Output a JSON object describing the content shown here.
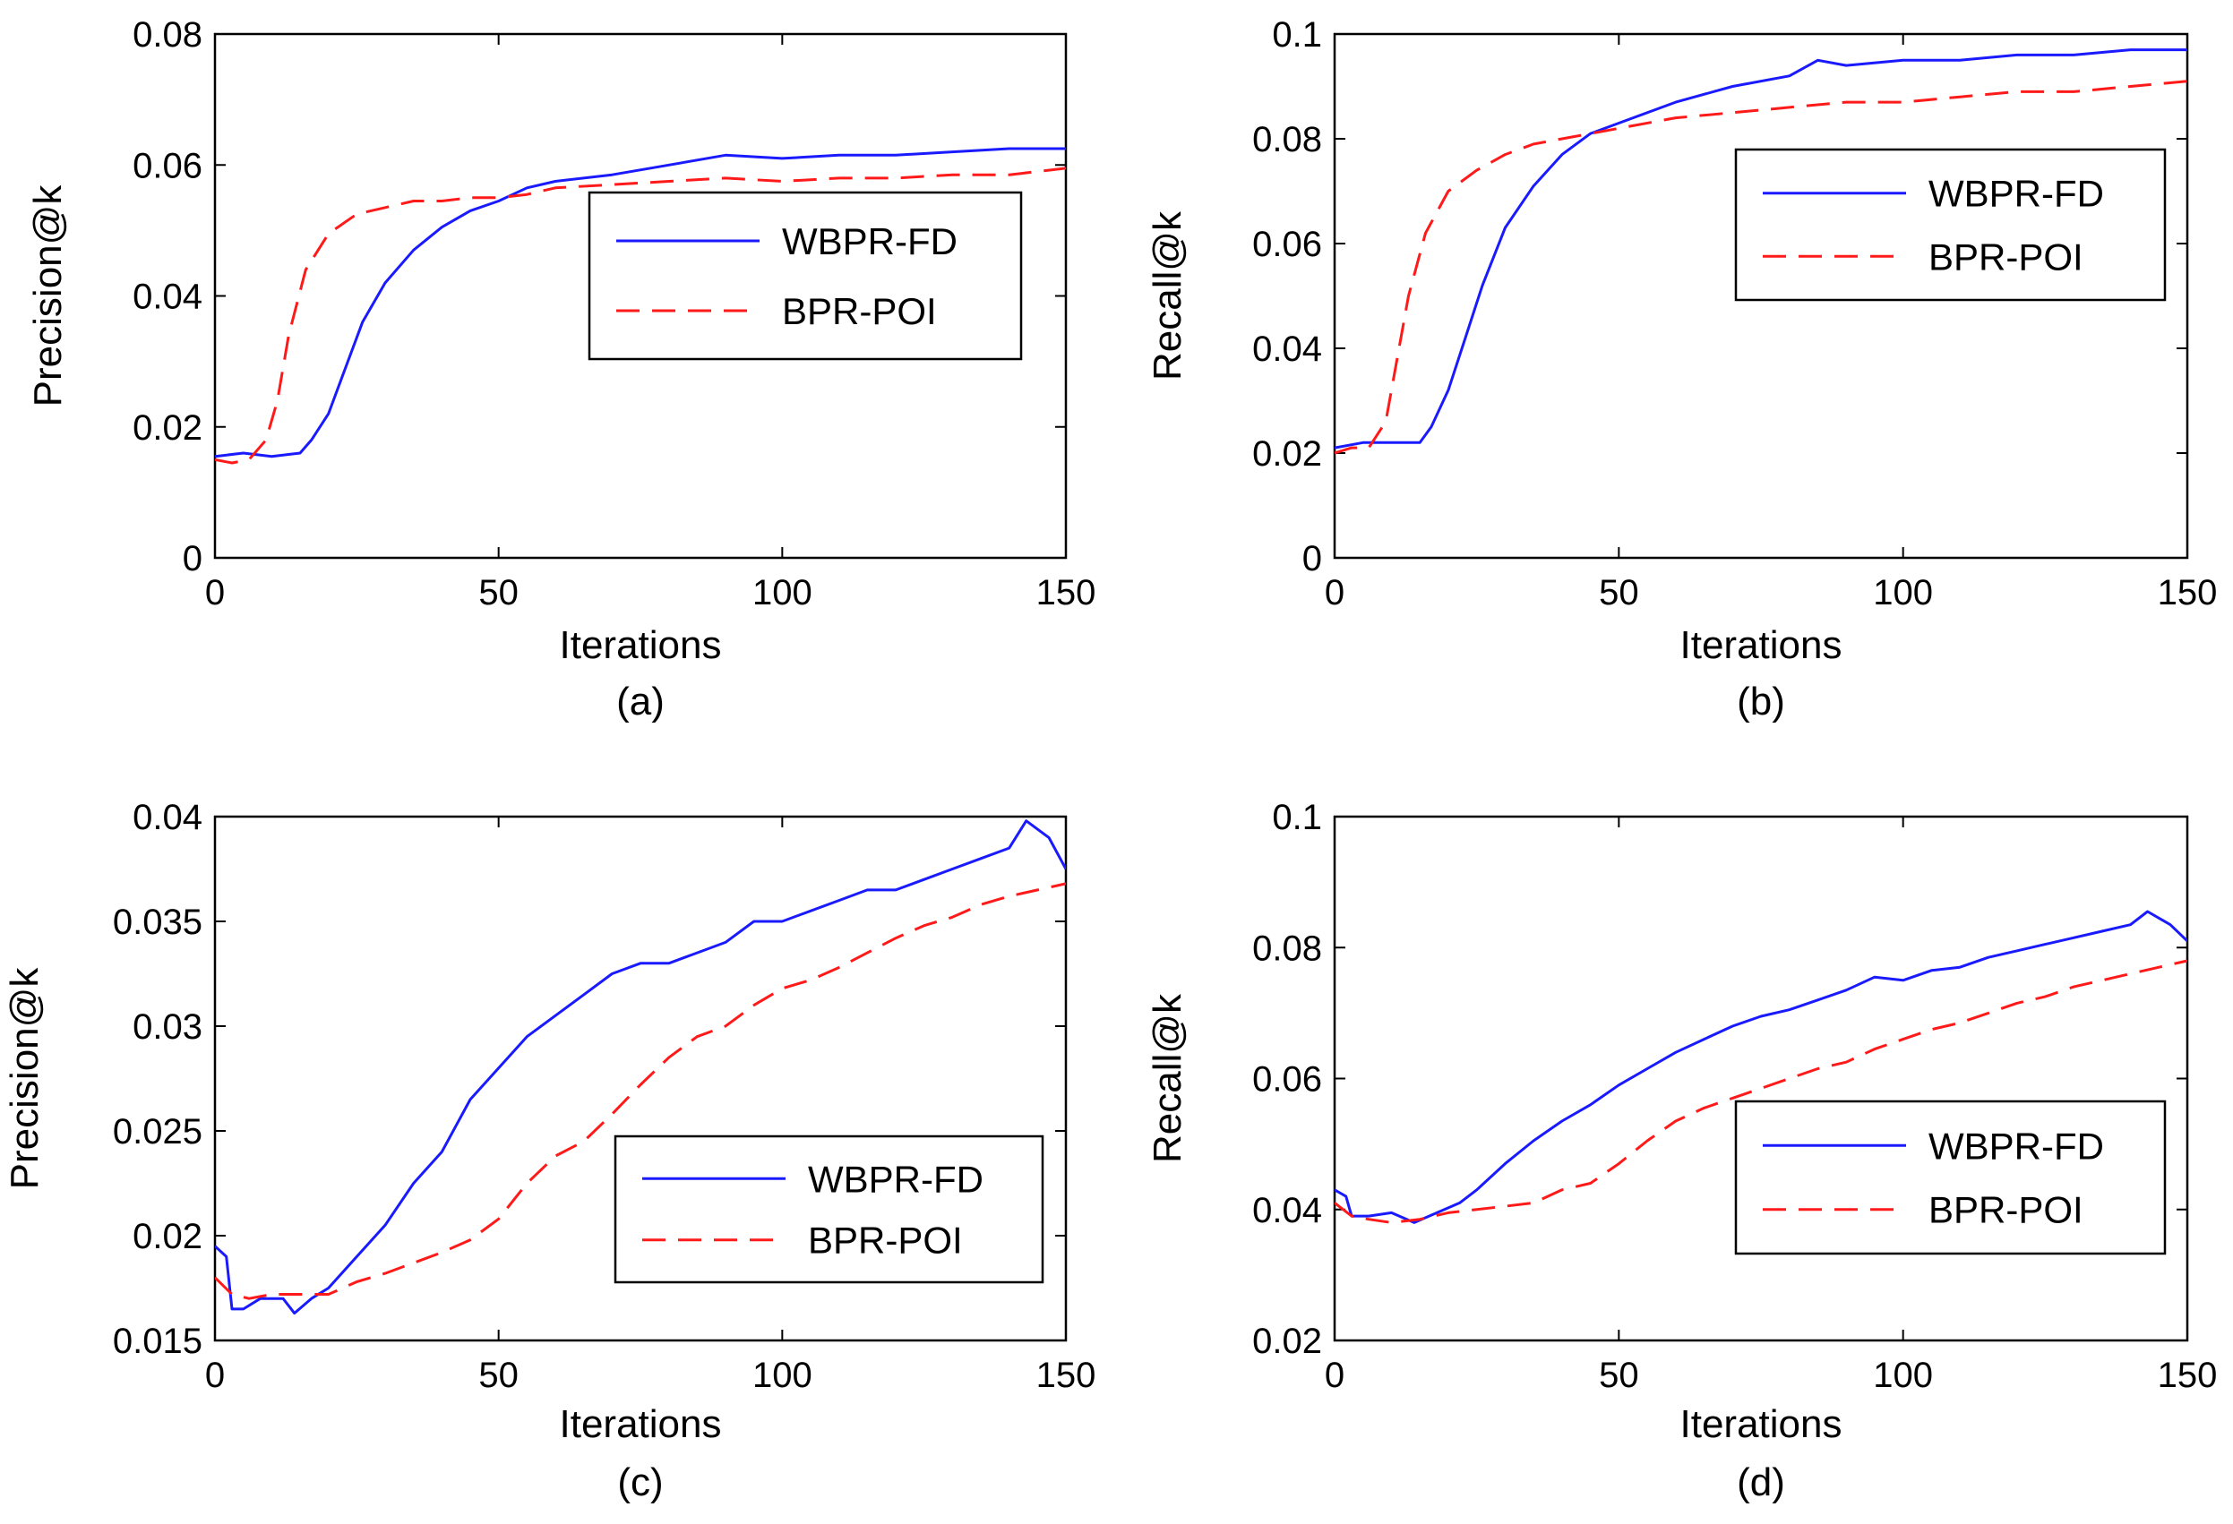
{
  "colors": {
    "wbpr": "#1a1aff",
    "bpr": "#ff1a1a"
  },
  "chart_data": [
    {
      "id": "a",
      "type": "line",
      "caption": "(a)",
      "xlabel": "Iterations",
      "ylabel": "Precision@k",
      "xlim": [
        0,
        150
      ],
      "ylim": [
        0,
        0.08
      ],
      "xticks": [
        0,
        50,
        100,
        150
      ],
      "xtick_labels": [
        "0",
        "50",
        "100",
        "150"
      ],
      "yticks": [
        0,
        0.02,
        0.04,
        0.06,
        0.08
      ],
      "ytick_labels": [
        "0",
        "0.02",
        "0.04",
        "0.06",
        "0.08"
      ],
      "legend": {
        "position": "center-right",
        "entries": [
          "WBPR-FD",
          "BPR-POI"
        ]
      },
      "series": [
        {
          "name": "WBPR-FD",
          "style": "solid",
          "x": [
            0,
            5,
            10,
            15,
            17,
            20,
            23,
            26,
            30,
            35,
            40,
            45,
            50,
            55,
            60,
            70,
            80,
            90,
            100,
            110,
            120,
            130,
            140,
            150
          ],
          "values": [
            0.0155,
            0.016,
            0.0155,
            0.016,
            0.018,
            0.022,
            0.029,
            0.036,
            0.042,
            0.047,
            0.0505,
            0.053,
            0.0545,
            0.0565,
            0.0575,
            0.0585,
            0.06,
            0.0615,
            0.061,
            0.0615,
            0.0615,
            0.062,
            0.0625,
            0.0625
          ]
        },
        {
          "name": "BPR-POI",
          "style": "dashed",
          "x": [
            0,
            3,
            6,
            9,
            11,
            13,
            16,
            20,
            25,
            30,
            35,
            40,
            45,
            50,
            55,
            60,
            70,
            80,
            90,
            100,
            110,
            120,
            130,
            140,
            150
          ],
          "values": [
            0.015,
            0.0145,
            0.015,
            0.018,
            0.024,
            0.034,
            0.044,
            0.0495,
            0.0525,
            0.0535,
            0.0545,
            0.0545,
            0.055,
            0.055,
            0.0555,
            0.0565,
            0.057,
            0.0575,
            0.058,
            0.0575,
            0.058,
            0.058,
            0.0585,
            0.0585,
            0.0595
          ]
        }
      ]
    },
    {
      "id": "b",
      "type": "line",
      "caption": "(b)",
      "xlabel": "Iterations",
      "ylabel": "Recall@k",
      "xlim": [
        0,
        150
      ],
      "ylim": [
        0,
        0.1
      ],
      "xticks": [
        0,
        50,
        100,
        150
      ],
      "xtick_labels": [
        "0",
        "50",
        "100",
        "150"
      ],
      "yticks": [
        0,
        0.02,
        0.04,
        0.06,
        0.08,
        0.1
      ],
      "ytick_labels": [
        "0",
        "0.02",
        "0.04",
        "0.06",
        "0.08",
        "0.1"
      ],
      "legend": {
        "position": "upper-right",
        "entries": [
          "WBPR-FD",
          "BPR-POI"
        ]
      },
      "series": [
        {
          "name": "WBPR-FD",
          "style": "solid",
          "x": [
            0,
            5,
            10,
            15,
            17,
            20,
            23,
            26,
            30,
            35,
            40,
            45,
            50,
            60,
            70,
            80,
            85,
            90,
            100,
            110,
            120,
            130,
            140,
            150
          ],
          "values": [
            0.021,
            0.022,
            0.022,
            0.022,
            0.025,
            0.032,
            0.042,
            0.052,
            0.063,
            0.071,
            0.077,
            0.081,
            0.083,
            0.087,
            0.09,
            0.092,
            0.095,
            0.094,
            0.095,
            0.095,
            0.096,
            0.096,
            0.097,
            0.097
          ]
        },
        {
          "name": "BPR-POI",
          "style": "dashed",
          "x": [
            0,
            3,
            6,
            9,
            11,
            13,
            16,
            20,
            25,
            30,
            35,
            40,
            45,
            50,
            60,
            70,
            80,
            90,
            100,
            110,
            120,
            130,
            140,
            150
          ],
          "values": [
            0.02,
            0.021,
            0.021,
            0.026,
            0.038,
            0.05,
            0.062,
            0.07,
            0.074,
            0.077,
            0.079,
            0.08,
            0.081,
            0.082,
            0.084,
            0.085,
            0.086,
            0.087,
            0.087,
            0.088,
            0.089,
            0.089,
            0.09,
            0.091
          ]
        }
      ]
    },
    {
      "id": "c",
      "type": "line",
      "caption": "(c)",
      "xlabel": "Iterations",
      "ylabel": "Precision@k",
      "xlim": [
        0,
        150
      ],
      "ylim": [
        0.015,
        0.04
      ],
      "xticks": [
        0,
        50,
        100,
        150
      ],
      "xtick_labels": [
        "0",
        "50",
        "100",
        "150"
      ],
      "yticks": [
        0.015,
        0.02,
        0.025,
        0.03,
        0.035,
        0.04
      ],
      "ytick_labels": [
        "0.015",
        "0.02",
        "0.025",
        "0.03",
        "0.035",
        "0.04"
      ],
      "legend": {
        "position": "lower-right",
        "entries": [
          "WBPR-FD",
          "BPR-POI"
        ]
      },
      "series": [
        {
          "name": "WBPR-FD",
          "style": "solid",
          "x": [
            0,
            2,
            3,
            5,
            8,
            12,
            14,
            17,
            20,
            25,
            30,
            35,
            40,
            45,
            50,
            55,
            60,
            65,
            70,
            75,
            80,
            85,
            90,
            95,
            100,
            105,
            110,
            115,
            120,
            125,
            130,
            135,
            140,
            143,
            147,
            150
          ],
          "values": [
            0.0195,
            0.019,
            0.0165,
            0.0165,
            0.017,
            0.017,
            0.0163,
            0.017,
            0.0175,
            0.019,
            0.0205,
            0.0225,
            0.024,
            0.0265,
            0.028,
            0.0295,
            0.0305,
            0.0315,
            0.0325,
            0.033,
            0.033,
            0.0335,
            0.034,
            0.035,
            0.035,
            0.0355,
            0.036,
            0.0365,
            0.0365,
            0.037,
            0.0375,
            0.038,
            0.0385,
            0.0398,
            0.039,
            0.0375
          ]
        },
        {
          "name": "BPR-POI",
          "style": "dashed",
          "x": [
            0,
            3,
            6,
            10,
            15,
            20,
            25,
            30,
            35,
            40,
            45,
            50,
            55,
            60,
            65,
            70,
            75,
            80,
            85,
            90,
            95,
            100,
            105,
            110,
            115,
            120,
            125,
            130,
            135,
            140,
            145,
            150
          ],
          "values": [
            0.018,
            0.0172,
            0.017,
            0.0172,
            0.0172,
            0.0172,
            0.0178,
            0.0182,
            0.0187,
            0.0192,
            0.0198,
            0.0208,
            0.0225,
            0.0238,
            0.0245,
            0.0258,
            0.0272,
            0.0285,
            0.0295,
            0.03,
            0.031,
            0.0318,
            0.0322,
            0.0328,
            0.0335,
            0.0342,
            0.0348,
            0.0352,
            0.0358,
            0.0362,
            0.0365,
            0.0368
          ]
        }
      ]
    },
    {
      "id": "d",
      "type": "line",
      "caption": "(d)",
      "xlabel": "Iterations",
      "ylabel": "Recall@k",
      "xlim": [
        0,
        150
      ],
      "ylim": [
        0.02,
        0.1
      ],
      "xticks": [
        0,
        50,
        100,
        150
      ],
      "xtick_labels": [
        "0",
        "50",
        "100",
        "150"
      ],
      "yticks": [
        0.02,
        0.04,
        0.06,
        0.08,
        0.1
      ],
      "ytick_labels": [
        "0.02",
        "0.04",
        "0.06",
        "0.08",
        "0.1"
      ],
      "legend": {
        "position": "lower-right",
        "entries": [
          "WBPR-FD",
          "BPR-POI"
        ]
      },
      "series": [
        {
          "name": "WBPR-FD",
          "style": "solid",
          "x": [
            0,
            2,
            3,
            6,
            10,
            14,
            18,
            22,
            25,
            30,
            35,
            40,
            45,
            50,
            55,
            60,
            65,
            70,
            75,
            80,
            85,
            90,
            95,
            100,
            105,
            110,
            115,
            120,
            125,
            130,
            135,
            140,
            143,
            147,
            150
          ],
          "values": [
            0.043,
            0.042,
            0.039,
            0.039,
            0.0395,
            0.038,
            0.0395,
            0.041,
            0.043,
            0.047,
            0.0505,
            0.0535,
            0.056,
            0.059,
            0.0615,
            0.064,
            0.066,
            0.068,
            0.0695,
            0.0705,
            0.072,
            0.0735,
            0.0755,
            0.075,
            0.0765,
            0.077,
            0.0785,
            0.0795,
            0.0805,
            0.0815,
            0.0825,
            0.0835,
            0.0855,
            0.0835,
            0.081
          ]
        },
        {
          "name": "BPR-POI",
          "style": "dashed",
          "x": [
            0,
            3,
            6,
            10,
            15,
            20,
            25,
            30,
            35,
            40,
            45,
            50,
            55,
            60,
            65,
            70,
            75,
            80,
            85,
            90,
            95,
            100,
            105,
            110,
            115,
            120,
            125,
            130,
            135,
            140,
            145,
            150
          ],
          "values": [
            0.041,
            0.039,
            0.0385,
            0.038,
            0.0385,
            0.0395,
            0.04,
            0.0405,
            0.041,
            0.043,
            0.044,
            0.047,
            0.0505,
            0.0535,
            0.0555,
            0.057,
            0.0585,
            0.06,
            0.0615,
            0.0625,
            0.0645,
            0.066,
            0.0675,
            0.0685,
            0.07,
            0.0715,
            0.0725,
            0.074,
            0.075,
            0.076,
            0.077,
            0.078
          ]
        }
      ]
    }
  ]
}
